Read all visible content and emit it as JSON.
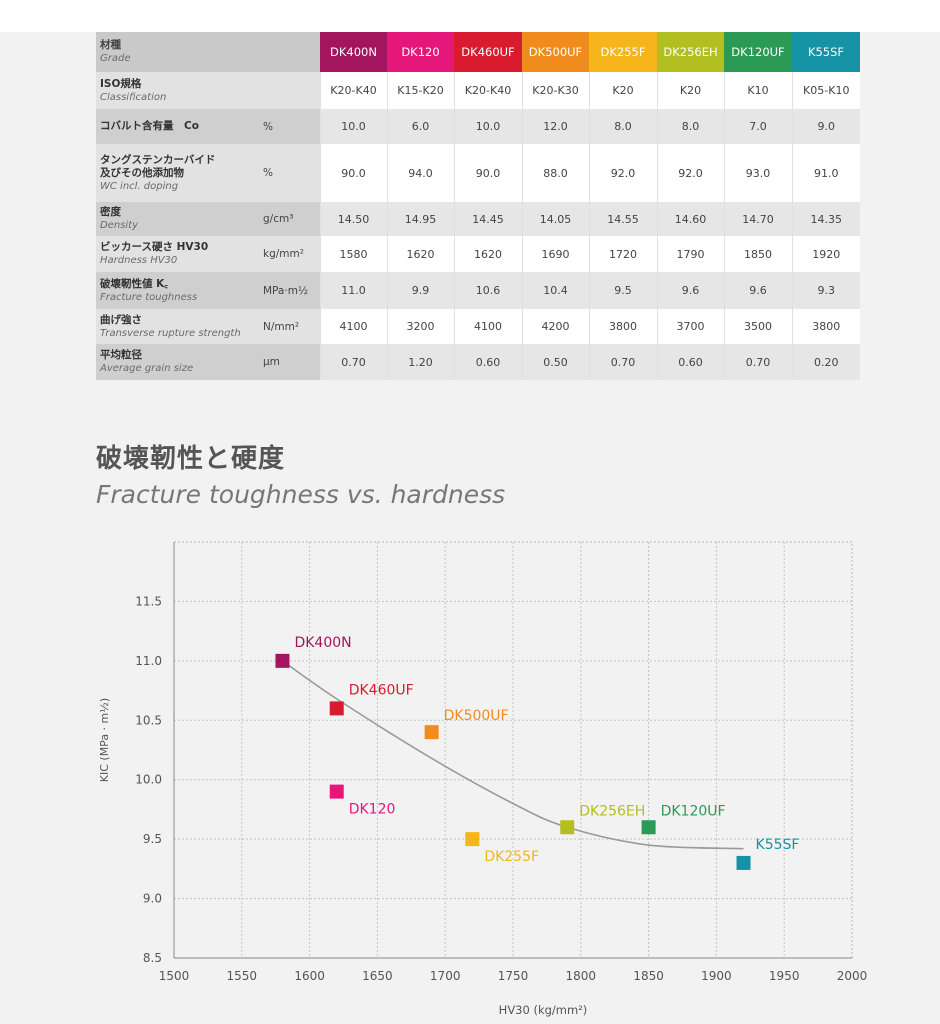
{
  "table": {
    "header_label_jp": "材種",
    "header_label_en": "Grade",
    "grades": [
      {
        "name": "DK400N",
        "color": "#a3155e"
      },
      {
        "name": "DK120",
        "color": "#e6177a"
      },
      {
        "name": "DK460UF",
        "color": "#d81b2f"
      },
      {
        "name": "DK500UF",
        "color": "#f08c1e"
      },
      {
        "name": "DK255F",
        "color": "#f5b51b"
      },
      {
        "name": "DK256EH",
        "color": "#b3be20"
      },
      {
        "name": "DK120UF",
        "color": "#2a9a55"
      },
      {
        "name": "K55SF",
        "color": "#1592a3"
      }
    ],
    "rows": [
      {
        "jp": "ISO規格",
        "en": "Classification",
        "unit": "",
        "values": [
          "K20-K40",
          "K15-K20",
          "K20-K40",
          "K20-K30",
          "K20",
          "K20",
          "K10",
          "K05-K10"
        ]
      },
      {
        "jp": "コバルト含有量　Co",
        "en": "",
        "unit": "%",
        "values": [
          "10.0",
          "6.0",
          "10.0",
          "12.0",
          "8.0",
          "8.0",
          "7.0",
          "9.0"
        ]
      },
      {
        "jp": "タングステンカーバイド",
        "jp2": "及びその他添加物",
        "en": "WC incl. doping",
        "unit": "%",
        "values": [
          "90.0",
          "94.0",
          "90.0",
          "88.0",
          "92.0",
          "92.0",
          "93.0",
          "91.0"
        ]
      },
      {
        "jp": "密度",
        "en": "Density",
        "unit": "g/cm³",
        "values": [
          "14.50",
          "14.95",
          "14.45",
          "14.05",
          "14.55",
          "14.60",
          "14.70",
          "14.35"
        ]
      },
      {
        "jp": "ビッカース硬さ HV30",
        "en": "Hardness HV30",
        "unit": "kg/mm²",
        "values": [
          "1580",
          "1620",
          "1620",
          "1690",
          "1720",
          "1790",
          "1850",
          "1920"
        ]
      },
      {
        "jp": "破壊靭性値 K꜀",
        "en": "Fracture toughness",
        "unit": "MPa·m½",
        "values": [
          "11.0",
          "9.9",
          "10.6",
          "10.4",
          "9.5",
          "9.6",
          "9.6",
          "9.3"
        ]
      },
      {
        "jp": "曲げ強さ",
        "en": "Transverse rupture strength",
        "unit": "N/mm²",
        "values": [
          "4100",
          "3200",
          "4100",
          "4200",
          "3800",
          "3700",
          "3500",
          "3800"
        ]
      },
      {
        "jp": "平均粒径",
        "en": "Average grain size",
        "unit": "μm",
        "values": [
          "0.70",
          "1.20",
          "0.60",
          "0.50",
          "0.70",
          "0.60",
          "0.70",
          "0.20"
        ]
      }
    ]
  },
  "section": {
    "title_jp": "破壊靭性と硬度",
    "title_en": "Fracture toughness vs. hardness"
  },
  "chart_data": {
    "type": "scatter",
    "xlabel": "HV30 (kg/mm²)",
    "ylabel": "KIC (MPa · m½)",
    "xlim": [
      1500,
      2000
    ],
    "ylim": [
      8.5,
      12.0
    ],
    "xticks": [
      1500,
      1550,
      1600,
      1650,
      1700,
      1750,
      1800,
      1850,
      1900,
      1950,
      2000
    ],
    "yticks": [
      8.5,
      9.0,
      9.5,
      10.0,
      10.5,
      11.0,
      11.5
    ],
    "grid": true,
    "points": [
      {
        "label": "DK400N",
        "x": 1580,
        "y": 11.0,
        "color": "#a3155e"
      },
      {
        "label": "DK460UF",
        "x": 1620,
        "y": 10.6,
        "color": "#d81b2f"
      },
      {
        "label": "DK500UF",
        "x": 1690,
        "y": 10.4,
        "color": "#f08c1e"
      },
      {
        "label": "DK120",
        "x": 1620,
        "y": 9.9,
        "color": "#e6177a"
      },
      {
        "label": "DK256EH",
        "x": 1790,
        "y": 9.6,
        "color": "#b3be20"
      },
      {
        "label": "DK120UF",
        "x": 1850,
        "y": 9.6,
        "color": "#2a9a55"
      },
      {
        "label": "DK255F",
        "x": 1720,
        "y": 9.5,
        "color": "#f5b51b"
      },
      {
        "label": "K55SF",
        "x": 1920,
        "y": 9.3,
        "color": "#1592a3"
      }
    ],
    "trend": {
      "x": [
        1580,
        1620,
        1690,
        1750,
        1790,
        1850,
        1920
      ],
      "y": [
        11.0,
        10.68,
        10.18,
        9.8,
        9.6,
        9.45,
        9.42
      ]
    }
  }
}
